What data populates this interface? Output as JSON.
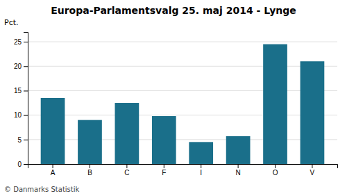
{
  "chart_data": {
    "type": "bar",
    "title": "Europa-Parlamentsvalg 25. maj 2014 - Lynge",
    "categories": [
      "A",
      "B",
      "C",
      "F",
      "I",
      "N",
      "O",
      "V"
    ],
    "values": [
      13.5,
      9.0,
      12.5,
      9.8,
      4.5,
      5.7,
      24.5,
      21.0
    ],
    "color": "#1a6f8a",
    "ylabel": "Pct.",
    "ylim": [
      0,
      27
    ],
    "yticks": [
      0,
      5,
      10,
      15,
      20,
      25
    ],
    "grid": true,
    "footer": "© Danmarks Statistik"
  }
}
